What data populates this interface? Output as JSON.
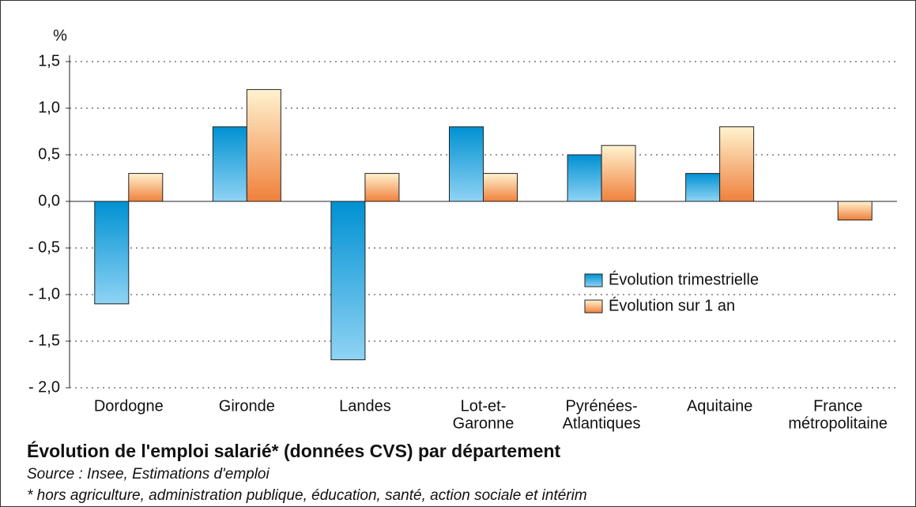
{
  "chart_data": {
    "type": "bar",
    "title": "Évolution de l'emploi salarié* (données CVS) par département",
    "source": "Source : Insee, Estimations d'emploi",
    "note": "* hors agriculture, administration publique, éducation, santé, action sociale et intérim",
    "y_label": "%",
    "categories": [
      [
        "Dordogne"
      ],
      [
        "Gironde"
      ],
      [
        "Landes"
      ],
      [
        "Lot-et-",
        "Garonne"
      ],
      [
        "Pyrénées-",
        "Atlantiques"
      ],
      [
        "Aquitaine"
      ],
      [
        "France",
        "métropolitaine"
      ]
    ],
    "series": [
      {
        "name": "Évolution trimestrielle",
        "color": "#0091d2",
        "values": [
          -1.1,
          0.8,
          -1.7,
          0.8,
          0.5,
          0.3,
          0.0
        ]
      },
      {
        "name": "Évolution sur 1 an",
        "color": "#f0803c",
        "values": [
          0.3,
          1.2,
          0.3,
          0.3,
          0.6,
          0.8,
          -0.2
        ]
      }
    ],
    "ylim": [
      -2.0,
      1.5
    ],
    "yticks": [
      {
        "value": -2.0,
        "label": "- 2,0"
      },
      {
        "value": -1.5,
        "label": "- 1,5"
      },
      {
        "value": -1.0,
        "label": "- 1,0"
      },
      {
        "value": -0.5,
        "label": "- 0,5"
      },
      {
        "value": 0.0,
        "label": "0,0"
      },
      {
        "value": 0.5,
        "label": "0,5"
      },
      {
        "value": 1.0,
        "label": "1,0"
      },
      {
        "value": 1.5,
        "label": "1,5"
      }
    ],
    "grid": true
  }
}
